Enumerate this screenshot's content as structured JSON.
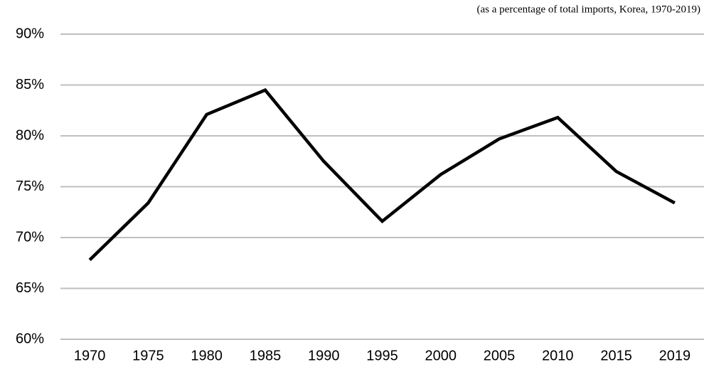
{
  "chart_data": {
    "type": "line",
    "subtitle": "(as a percentage of total imports, Korea, 1970-2019)",
    "categories": [
      "1970",
      "1975",
      "1980",
      "1985",
      "1990",
      "1995",
      "2000",
      "2005",
      "2010",
      "2015",
      "2019"
    ],
    "series": [
      {
        "color": "#000000",
        "values": [
          67.8,
          73.4,
          82.1,
          84.5,
          77.5,
          71.6,
          76.2,
          79.7,
          81.8,
          76.5,
          73.4
        ]
      }
    ],
    "ylim": [
      60,
      90
    ],
    "yticks": [
      {
        "value": 60,
        "label": "60%"
      },
      {
        "value": 65,
        "label": "65%"
      },
      {
        "value": 70,
        "label": "70%"
      },
      {
        "value": 75,
        "label": "75%"
      },
      {
        "value": 80,
        "label": "80%"
      },
      {
        "value": 85,
        "label": "85%"
      },
      {
        "value": 90,
        "label": "90%"
      }
    ],
    "grid": true
  }
}
